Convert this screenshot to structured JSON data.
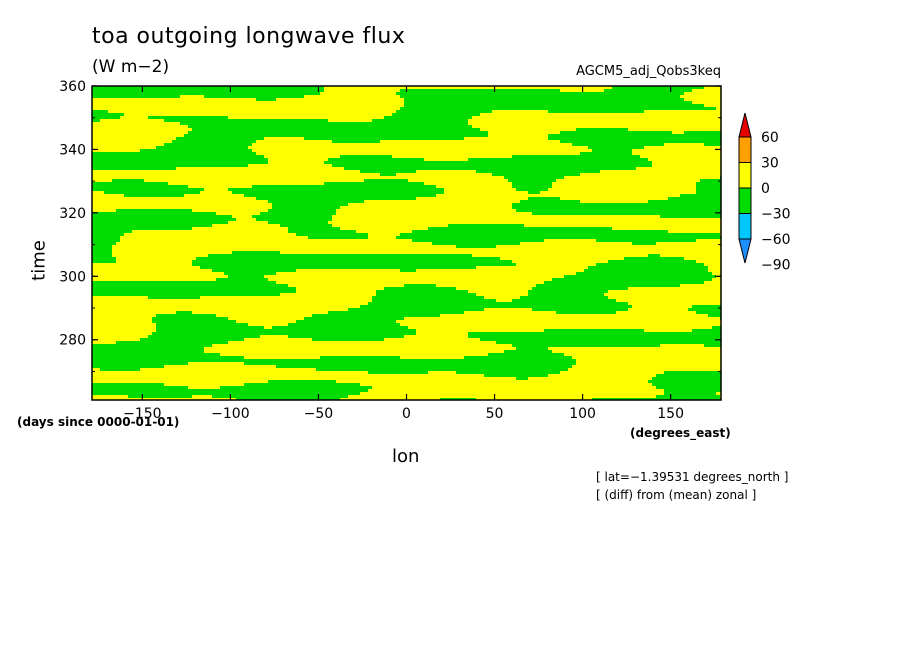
{
  "chart_data": {
    "type": "heatmap",
    "title": "toa outgoing longwave flux",
    "units": "(W m−2)",
    "run_label": "AGCM5_adj_Qobs3keq",
    "xlabel": "lon",
    "ylabel": "time",
    "x_units": "(degrees_east)",
    "y_units": "(days since 0000-01-01)",
    "xlim": [
      -178.6,
      178.6
    ],
    "ylim": [
      261,
      360
    ],
    "x_ticks": [
      -150,
      -100,
      -50,
      0,
      50,
      100,
      150
    ],
    "x_tick_labels": [
      "−150",
      "−100",
      "−50",
      "0",
      "50",
      "100",
      "150"
    ],
    "y_ticks": [
      280,
      300,
      320,
      340,
      360
    ],
    "y_tick_labels": [
      "280",
      "300",
      "320",
      "340",
      "360"
    ],
    "colorbar": {
      "levels": [
        -90,
        -60,
        -30,
        0,
        30,
        60
      ],
      "level_labels": [
        "−90",
        "−60",
        "−30",
        "0",
        "30",
        "60"
      ],
      "colors": [
        "#1e90ff",
        "#00c8ff",
        "#00dc00",
        "#ffff00",
        "#ffa000",
        "#e60000"
      ],
      "dominant_classes": [
        "#00dc00",
        "#ffff00"
      ]
    },
    "annotations": [
      "[ lat=−1.39531 degrees_north ]",
      "[ (diff) from (mean) zonal ]"
    ]
  }
}
